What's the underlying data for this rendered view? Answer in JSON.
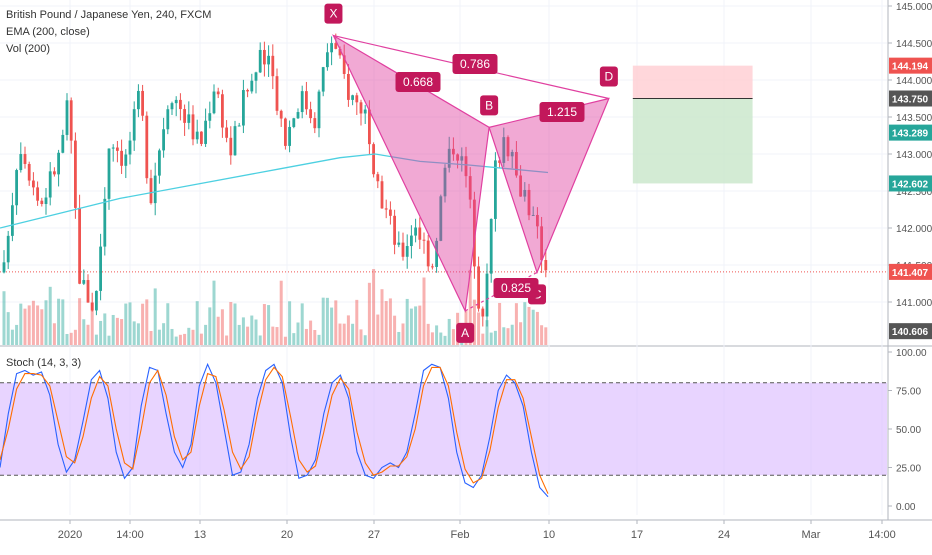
{
  "legend": {
    "symbol": "British Pound / Japanese Yen, 240, FXCM",
    "ema": "EMA (200, close)",
    "vol": "Vol (200)",
    "stoch": "Stoch (14, 3, 3)"
  },
  "colors": {
    "up": "#26a69a",
    "down": "#ef5350",
    "ema": "#4dd0e1",
    "pattern": "#c2185b",
    "pattern_fill": "#e040a0",
    "stoch_k": "#2962ff",
    "stoch_d": "#ff6d00",
    "stoch_band": "#d9b8ff",
    "stop_zone": "#ffcdd2",
    "target_zone": "#c8e6c9"
  },
  "chart_data": [
    {
      "type": "candlestick",
      "title": "British Pound / Japanese Yen, 240, FXCM",
      "ylim": [
        140.5,
        145.1
      ],
      "y_ticks": [
        "145.000",
        "144.500",
        "144.000",
        "143.500",
        "143.000",
        "142.500",
        "142.000",
        "141.500",
        "141.000"
      ],
      "x_ticks": [
        "2020",
        "14:00",
        "13",
        "20",
        "27",
        "Feb",
        "10",
        "17",
        "24",
        "Mar",
        "14:00"
      ],
      "ema_label": "EMA (200, close)",
      "price_labels": [
        {
          "text": "144.194",
          "value": 144.194,
          "color": "#ef5350"
        },
        {
          "text": "143.750",
          "value": 143.75,
          "color": "#555555"
        },
        {
          "text": "143.289",
          "value": 143.289,
          "color": "#26a69a"
        },
        {
          "text": "142.602",
          "value": 142.602,
          "color": "#26a69a"
        },
        {
          "text": "141.407",
          "value": 141.407,
          "color": "#ef5350"
        },
        {
          "text": "140.606",
          "value": 140.606,
          "color": "#555555"
        }
      ],
      "harmonic_pattern": {
        "points": [
          {
            "label": "X",
            "date": "2020-01-23",
            "price": 144.6
          },
          {
            "label": "A",
            "date": "2020-02-03",
            "price": 140.88
          },
          {
            "label": "B",
            "date": "2020-02-05",
            "price": 143.36
          },
          {
            "label": "C",
            "date": "2020-02-09",
            "price": 141.4
          },
          {
            "label": "D",
            "date": "2020-02-15",
            "price": 143.75
          }
        ],
        "ratios": [
          {
            "label": "0.668",
            "leg": "XA-AB"
          },
          {
            "label": "0.786",
            "leg": "XD"
          },
          {
            "label": "1.215",
            "leg": "BD"
          },
          {
            "label": "0.825",
            "leg": "AC"
          }
        ]
      },
      "trade_zone": {
        "stop": 144.194,
        "entry": 143.75,
        "target": 142.602,
        "from_date": "2020-02-17",
        "to_date": "2020-02-27"
      },
      "volume_series": "Vol (200)"
    },
    {
      "type": "line",
      "title": "Stoch (14, 3, 3)",
      "ylim": [
        -5,
        102
      ],
      "y_ticks": [
        "100.00",
        "75.00",
        "50.00",
        "25.00",
        "0.00"
      ],
      "bands": [
        20,
        80
      ],
      "series": [
        {
          "name": "%K",
          "values": [
            25,
            60,
            86,
            88,
            85,
            87,
            72,
            40,
            22,
            30,
            55,
            82,
            88,
            70,
            35,
            18,
            25,
            65,
            90,
            88,
            60,
            35,
            25,
            40,
            78,
            92,
            80,
            50,
            20,
            22,
            40,
            70,
            88,
            92,
            80,
            45,
            18,
            20,
            30,
            60,
            80,
            85,
            70,
            35,
            20,
            18,
            25,
            28,
            25,
            35,
            60,
            88,
            92,
            90,
            70,
            35,
            15,
            12,
            20,
            45,
            75,
            85,
            80,
            65,
            35,
            12,
            6
          ]
        },
        {
          "name": "%D",
          "values": [
            30,
            50,
            76,
            86,
            86,
            85,
            78,
            55,
            32,
            28,
            45,
            70,
            84,
            78,
            50,
            28,
            24,
            50,
            80,
            88,
            72,
            45,
            30,
            35,
            65,
            86,
            84,
            62,
            35,
            24,
            32,
            60,
            82,
            90,
            84,
            58,
            30,
            22,
            26,
            48,
            72,
            83,
            76,
            48,
            28,
            20,
            22,
            26,
            26,
            32,
            50,
            78,
            90,
            90,
            78,
            48,
            24,
            15,
            18,
            36,
            64,
            82,
            82,
            70,
            45,
            20,
            8
          ]
        }
      ]
    }
  ]
}
